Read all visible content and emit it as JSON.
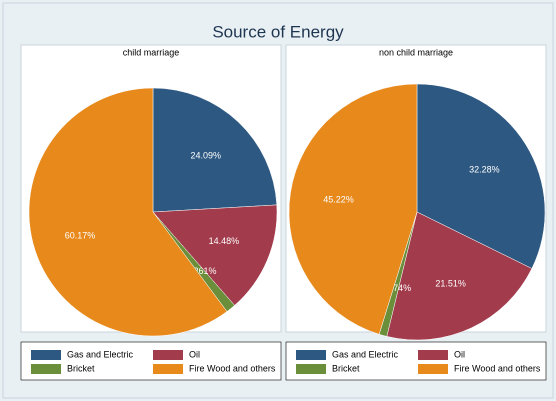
{
  "chart_data": {
    "type": "pie",
    "title": "Source of Energy",
    "categories": [
      "Gas and Electric",
      "Oil",
      "Bricket",
      "Fire Wood and others"
    ],
    "colors": [
      "#2d5881",
      "#a23b4c",
      "#6a8e3a",
      "#e8891c"
    ],
    "series": [
      {
        "name": "child marriage",
        "values": [
          24.09,
          14.48,
          1.261,
          60.17
        ],
        "value_labels": [
          "24.09%",
          "14.48%",
          "1.261%",
          "60.17%"
        ]
      },
      {
        "name": "non child marriage",
        "values": [
          32.28,
          21.51,
          0.9874,
          45.22
        ],
        "value_labels": [
          "32.28%",
          "21.51%",
          ".9874%",
          "45.22%"
        ]
      }
    ]
  }
}
